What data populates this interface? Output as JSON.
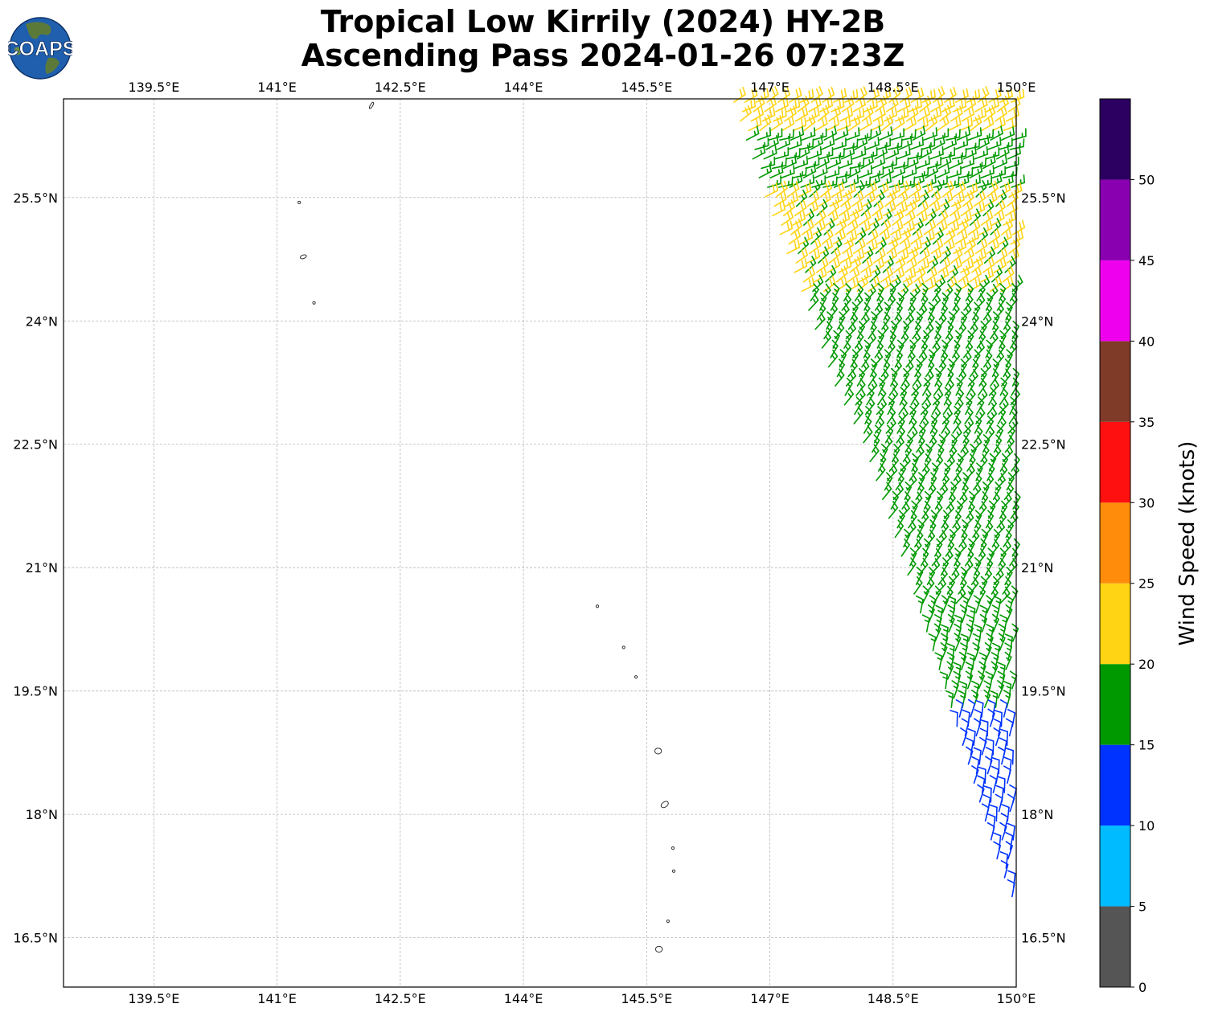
{
  "title": {
    "line1": "Tropical Low Kirrily (2024) HY-2B",
    "line2": "Ascending Pass 2024-01-26 07:23Z"
  },
  "logo": {
    "text": "COAPS",
    "icon": "globe-icon",
    "ocean_color": "#1f5fae",
    "land_color": "#5b7a3a"
  },
  "map": {
    "lon_range": [
      138.4,
      150.0
    ],
    "lat_range": [
      15.9,
      26.7
    ],
    "lon_ticks": [
      {
        "value": 139.5,
        "label": "139.5°E"
      },
      {
        "value": 141.0,
        "label": "141°E"
      },
      {
        "value": 142.5,
        "label": "142.5°E"
      },
      {
        "value": 144.0,
        "label": "144°E"
      },
      {
        "value": 145.5,
        "label": "145.5°E"
      },
      {
        "value": 147.0,
        "label": "147°E"
      },
      {
        "value": 148.5,
        "label": "148.5°E"
      },
      {
        "value": 150.0,
        "label": "150°E"
      }
    ],
    "lat_ticks": [
      {
        "value": 25.5,
        "label": "25.5°N"
      },
      {
        "value": 24.0,
        "label": "24°N"
      },
      {
        "value": 22.5,
        "label": "22.5°N"
      },
      {
        "value": 21.0,
        "label": "21°N"
      },
      {
        "value": 19.5,
        "label": "19.5°N"
      },
      {
        "value": 18.0,
        "label": "18°N"
      },
      {
        "value": 16.5,
        "label": "16.5°N"
      }
    ],
    "gridlines": true,
    "islands": [
      {
        "lon": 142.15,
        "lat": 26.62,
        "shape": "sliver"
      },
      {
        "lon": 141.27,
        "lat": 25.44,
        "shape": "dot"
      },
      {
        "lon": 141.32,
        "lat": 24.78,
        "shape": "small"
      },
      {
        "lon": 141.45,
        "lat": 24.22,
        "shape": "dot"
      },
      {
        "lon": 144.9,
        "lat": 20.53,
        "shape": "dot"
      },
      {
        "lon": 145.22,
        "lat": 20.03,
        "shape": "dot"
      },
      {
        "lon": 145.37,
        "lat": 19.67,
        "shape": "dot"
      },
      {
        "lon": 145.64,
        "lat": 18.77,
        "shape": "oval"
      },
      {
        "lon": 145.72,
        "lat": 18.12,
        "shape": "medium"
      },
      {
        "lon": 145.82,
        "lat": 17.59,
        "shape": "dot"
      },
      {
        "lon": 145.83,
        "lat": 17.31,
        "shape": "dot"
      },
      {
        "lon": 145.76,
        "lat": 16.7,
        "shape": "dot"
      },
      {
        "lon": 145.65,
        "lat": 16.36,
        "shape": "oval"
      }
    ],
    "coastline_color": "#333333"
  },
  "wind_barbs": {
    "swath": [
      {
        "lat": 26.7,
        "west_lon": 146.55
      },
      {
        "lat": 25.5,
        "west_lon": 146.95
      },
      {
        "lat": 24.2,
        "west_lon": 147.45
      },
      {
        "lat": 23.2,
        "west_lon": 147.8
      },
      {
        "lat": 22.5,
        "west_lon": 148.15
      },
      {
        "lat": 21.0,
        "west_lon": 148.65
      },
      {
        "lat": 19.5,
        "west_lon": 149.15
      },
      {
        "lat": 18.5,
        "west_lon": 149.45
      },
      {
        "lat": 17.5,
        "west_lon": 149.75
      },
      {
        "lat": 17.0,
        "west_lon": 149.95
      }
    ],
    "east_lon": 150.0,
    "regions": [
      {
        "lat_min": 26.25,
        "lat_max": 26.7,
        "direction_deg": 60,
        "speed_knots": 22
      },
      {
        "lat_min": 25.6,
        "lat_max": 26.25,
        "direction_deg": 70,
        "speed_knots": 18
      },
      {
        "lat_min": 24.35,
        "lat_max": 25.6,
        "direction_deg": 55,
        "speed_knots": 21
      },
      {
        "lat_min": 20.5,
        "lat_max": 24.35,
        "direction_deg": 35,
        "speed_knots": 17
      },
      {
        "lat_min": 19.3,
        "lat_max": 20.5,
        "direction_deg": 15,
        "speed_knots": 17
      },
      {
        "lat_min": 16.8,
        "lat_max": 19.3,
        "direction_deg": 10,
        "speed_knots": 12
      }
    ],
    "speed_bins": [
      {
        "min": 0,
        "max": 5,
        "color": "#555555"
      },
      {
        "min": 5,
        "max": 10,
        "color": "#00bbff"
      },
      {
        "min": 10,
        "max": 15,
        "color": "#0033ff"
      },
      {
        "min": 15,
        "max": 20,
        "color": "#009900"
      },
      {
        "min": 20,
        "max": 25,
        "color": "#ffd414"
      },
      {
        "min": 25,
        "max": 30,
        "color": "#ff8c0a"
      },
      {
        "min": 30,
        "max": 35,
        "color": "#ff1010"
      },
      {
        "min": 35,
        "max": 40,
        "color": "#7f3a28"
      },
      {
        "min": 40,
        "max": 45,
        "color": "#ee00ee"
      },
      {
        "min": 45,
        "max": 50,
        "color": "#8800b0"
      },
      {
        "min": 50,
        "max": 55,
        "color": "#2c0060"
      }
    ]
  },
  "colorbar": {
    "title": "Wind Speed (knots)",
    "range": [
      0,
      55
    ],
    "tick_values": [
      0,
      5,
      10,
      15,
      20,
      25,
      30,
      35,
      40,
      45,
      50
    ],
    "tick_labels": [
      "0",
      "5",
      "10",
      "15",
      "20",
      "25",
      "30",
      "35",
      "40",
      "45",
      "50"
    ]
  }
}
